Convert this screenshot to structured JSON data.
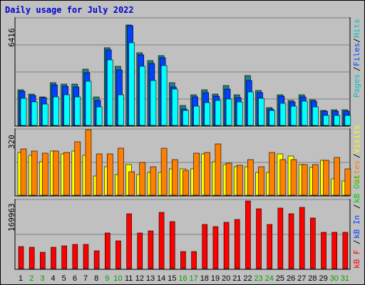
{
  "title": "Daily usage for July 2022",
  "colors": {
    "hits": "#00ffff",
    "files": "#0040ff",
    "pages": "#00c0c0",
    "visits": "#ffff00",
    "sites": "#ff8000",
    "kbout": "#00d000",
    "kbin": "#0040ff",
    "kbf": "#ff0000"
  },
  "chart_data": [
    {
      "type": "bar",
      "ymax_label": "6416",
      "ylim": [
        0,
        6416
      ],
      "series_labels": [
        "Pages",
        "Files",
        "Hits"
      ],
      "categories": [
        "1",
        "2",
        "3",
        "4",
        "5",
        "6",
        "7",
        "8",
        "9",
        "10",
        "11",
        "12",
        "13",
        "14",
        "15",
        "16",
        "17",
        "18",
        "19",
        "20",
        "21",
        "22",
        "23",
        "24",
        "25",
        "26",
        "27",
        "28",
        "29",
        "30",
        "31"
      ],
      "weekend_days": [
        "2",
        "3",
        "9",
        "10",
        "16",
        "17",
        "23",
        "24",
        "30",
        "31"
      ],
      "series": [
        {
          "name": "Pages",
          "values": [
            2140,
            1880,
            1700,
            2550,
            2480,
            2500,
            3400,
            1700,
            4650,
            3550,
            6050,
            4360,
            3900,
            4180,
            2560,
            1200,
            1820,
            2130,
            1900,
            2400,
            1830,
            3000,
            2100,
            1080,
            1850,
            1500,
            1830,
            1550,
            900,
            940,
            940
          ]
        },
        {
          "name": "Files",
          "values": [
            2050,
            1800,
            1650,
            2430,
            2350,
            2320,
            3180,
            1500,
            4550,
            3320,
            5970,
            4250,
            3720,
            4050,
            2310,
            1000,
            1690,
            1960,
            1770,
            2180,
            1650,
            2700,
            1950,
            1000,
            1750,
            1430,
            1730,
            1440,
            850,
            850,
            850
          ]
        },
        {
          "name": "Hits",
          "values": [
            1630,
            1420,
            1300,
            1690,
            1850,
            1700,
            2650,
            1120,
            3920,
            1830,
            4950,
            3550,
            2700,
            3610,
            2180,
            880,
            1140,
            1380,
            1480,
            1600,
            1410,
            2010,
            1610,
            900,
            1340,
            1150,
            1440,
            1100,
            580,
            620,
            580
          ]
        }
      ]
    },
    {
      "type": "bar",
      "ymax_label": "320",
      "ylim": [
        0,
        320
      ],
      "series_labels": [
        "Visits",
        "Sites"
      ],
      "categories": [
        "1",
        "2",
        "3",
        "4",
        "5",
        "6",
        "7",
        "8",
        "9",
        "10",
        "11",
        "12",
        "13",
        "14",
        "15",
        "16",
        "17",
        "18",
        "19",
        "20",
        "21",
        "22",
        "23",
        "24",
        "25",
        "26",
        "27",
        "28",
        "29",
        "30",
        "31"
      ],
      "series": [
        {
          "name": "Visits",
          "values": [
            210,
            195,
            165,
            215,
            200,
            215,
            195,
            95,
            140,
            100,
            150,
            100,
            110,
            110,
            130,
            130,
            130,
            200,
            165,
            150,
            140,
            140,
            110,
            110,
            200,
            190,
            150,
            135,
            170,
            80,
            70
          ]
        },
        {
          "name": "Sites",
          "values": [
            225,
            215,
            205,
            215,
            210,
            260,
            320,
            200,
            200,
            230,
            115,
            160,
            140,
            230,
            175,
            120,
            205,
            210,
            250,
            155,
            145,
            175,
            140,
            210,
            175,
            175,
            150,
            150,
            170,
            185,
            130
          ]
        }
      ]
    },
    {
      "type": "bar",
      "ymax_label": "169963",
      "ylim": [
        0,
        169963
      ],
      "series_labels": [
        "kB F",
        "kB In",
        "kB Out"
      ],
      "categories": [
        "1",
        "2",
        "3",
        "4",
        "5",
        "6",
        "7",
        "8",
        "9",
        "10",
        "11",
        "12",
        "13",
        "14",
        "15",
        "16",
        "17",
        "18",
        "19",
        "20",
        "21",
        "22",
        "23",
        "24",
        "25",
        "26",
        "27",
        "28",
        "29",
        "30",
        "31"
      ],
      "series": [
        {
          "name": "kB F",
          "values": [
            55000,
            53000,
            41000,
            53000,
            56000,
            61000,
            60000,
            44000,
            88000,
            69000,
            137000,
            88000,
            94000,
            140000,
            117000,
            42000,
            42000,
            110000,
            105000,
            115000,
            123000,
            169000,
            149000,
            110000,
            150000,
            137000,
            153000,
            125000,
            90000,
            90000,
            90000
          ]
        }
      ]
    }
  ]
}
